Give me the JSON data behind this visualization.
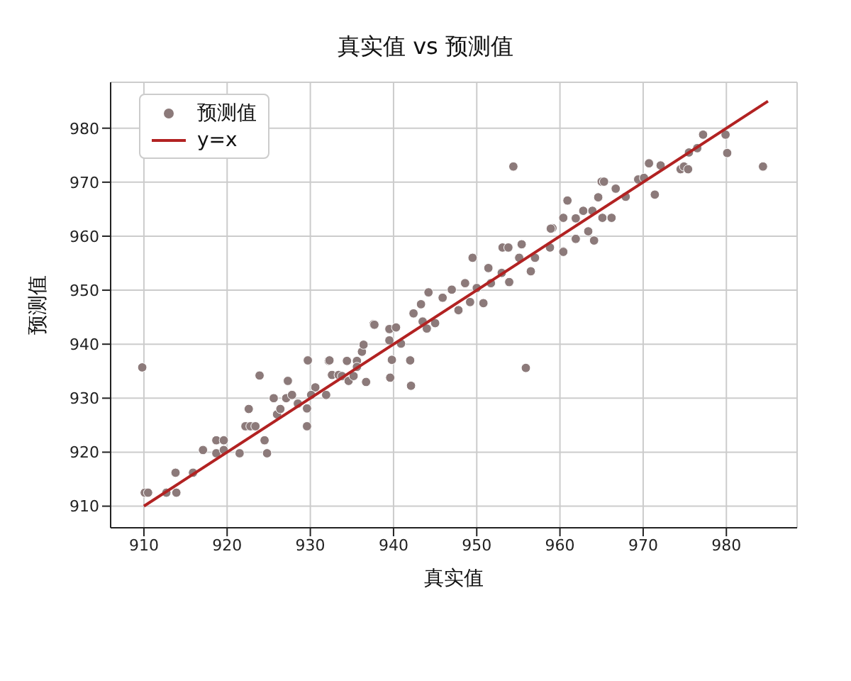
{
  "chart_data": {
    "type": "scatter",
    "title": "真实值 vs 预测值",
    "xlabel": "真实值",
    "ylabel": "预测值",
    "xlim": [
      906,
      988.5
    ],
    "ylim": [
      906,
      988.5
    ],
    "xticks": [
      910,
      920,
      930,
      940,
      950,
      960,
      970,
      980
    ],
    "yticks": [
      910,
      920,
      930,
      940,
      950,
      960,
      970,
      980
    ],
    "grid": true,
    "legend": "top left",
    "series": [
      {
        "name": "预测值",
        "marker": "circle",
        "color": "#8c7a7a",
        "x": [
          909.8,
          910.1,
          910.5,
          912.7,
          913.9,
          913.8,
          915.9,
          917.1,
          918.7,
          919.6,
          918.7,
          919.6,
          921.5,
          923.9,
          922.6,
          922.2,
          922.8,
          923.4,
          924.5,
          924.8,
          925.6,
          926.0,
          926.4,
          927.1,
          927.3,
          927.8,
          928.5,
          929.6,
          929.6,
          929.7,
          930.6,
          930.1,
          931.9,
          932.2,
          932.6,
          933.4,
          933.8,
          934.4,
          934.6,
          935.2,
          935.6,
          935.6,
          936.2,
          936.4,
          936.7,
          937.6,
          932.3,
          937.7,
          939.5,
          940.3,
          939.5,
          939.8,
          939.6,
          942.0,
          942.1,
          940.9,
          942.4,
          943.3,
          944.2,
          943.5,
          944.0,
          945.0,
          945.9,
          947.0,
          947.8,
          948.6,
          949.2,
          949.5,
          950.0,
          950.8,
          951.4,
          951.7,
          953.1,
          953.8,
          953.9,
          953.0,
          955.9,
          955.4,
          955.1,
          956.5,
          957.0,
          958.8,
          959.1,
          960.4,
          960.4,
          961.9,
          961.9,
          958.9,
          960.4,
          960.9,
          962.8,
          963.4,
          964.1,
          963.9,
          964.6,
          965.0,
          965.3,
          965.1,
          966.2,
          966.7,
          967.9,
          969.4,
          970.1,
          970.7,
          971.4,
          972.1,
          974.5,
          974.9,
          975.4,
          975.5,
          976.5,
          977.2,
          979.9,
          980.1,
          984.4,
          954.4
        ],
        "values": [
          935.7,
          912.5,
          912.5,
          912.5,
          912.5,
          916.2,
          916.2,
          920.4,
          922.2,
          922.2,
          919.8,
          920.4,
          919.8,
          934.2,
          928.0,
          924.8,
          924.8,
          924.8,
          922.2,
          919.8,
          930.0,
          927.0,
          928.0,
          930.0,
          933.2,
          930.6,
          929.0,
          928.1,
          924.8,
          937.0,
          932.0,
          930.6,
          930.6,
          936.9,
          934.3,
          934.3,
          934.1,
          936.9,
          933.2,
          934.1,
          936.9,
          935.8,
          938.6,
          939.9,
          933.0,
          943.7,
          937.0,
          943.6,
          942.8,
          943.1,
          940.7,
          937.1,
          933.8,
          937.0,
          932.3,
          940.1,
          945.7,
          947.4,
          949.6,
          944.2,
          942.9,
          943.9,
          948.6,
          950.1,
          946.3,
          951.3,
          947.8,
          956.0,
          950.4,
          947.6,
          954.1,
          951.3,
          957.9,
          957.9,
          951.5,
          953.2,
          935.6,
          958.5,
          956.0,
          953.5,
          956.0,
          957.9,
          961.5,
          957.2,
          963.4,
          963.3,
          959.5,
          961.4,
          957.1,
          966.6,
          964.7,
          960.9,
          959.2,
          964.7,
          967.2,
          970.1,
          970.1,
          963.4,
          963.4,
          968.8,
          967.3,
          970.5,
          970.8,
          973.5,
          967.7,
          973.1,
          972.4,
          972.9,
          972.4,
          975.5,
          976.3,
          978.8,
          978.8,
          975.4,
          972.9,
          972.9
        ]
      },
      {
        "name": "y=x",
        "type": "line",
        "marker": "none",
        "color": "#b22222",
        "x": [
          910,
          985
        ],
        "values": [
          910,
          985
        ]
      }
    ]
  }
}
